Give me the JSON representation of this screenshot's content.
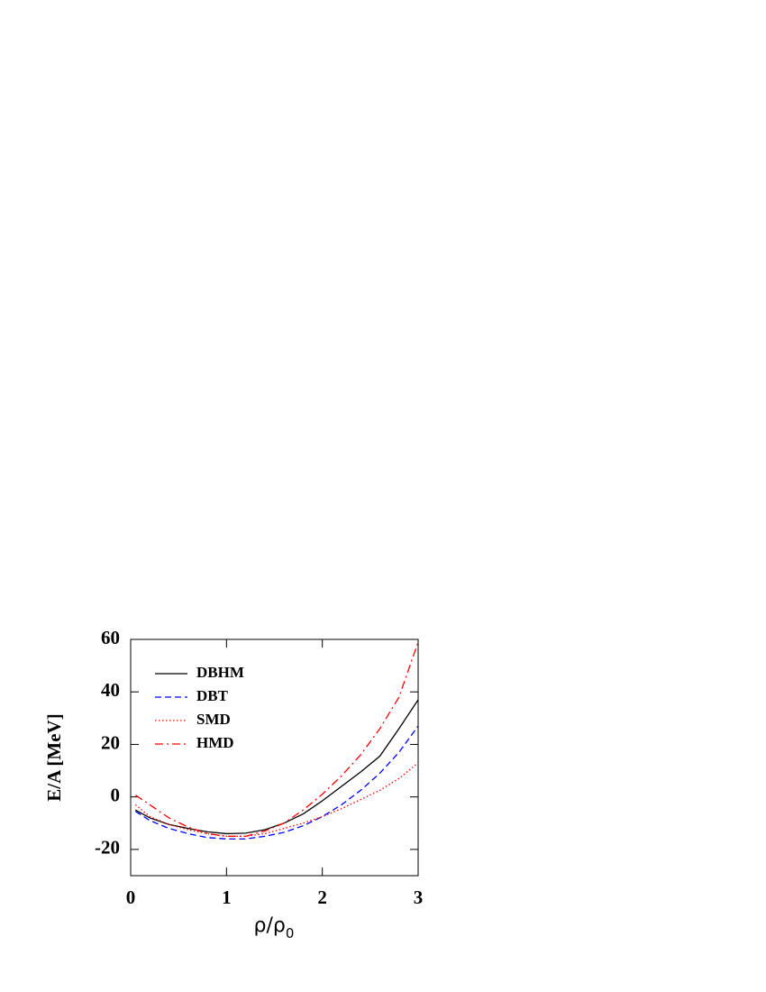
{
  "chart_data": {
    "type": "line",
    "ylabel": "E/A [MeV]",
    "xlabel": {
      "text": "ρ/ρ",
      "subscript": "0"
    },
    "x": [
      0.05,
      0.2,
      0.4,
      0.6,
      0.8,
      1.0,
      1.2,
      1.4,
      1.6,
      1.8,
      2.0,
      2.2,
      2.4,
      2.6,
      2.8,
      3.0
    ],
    "series": [
      {
        "name": "DBHM",
        "color": "#000000",
        "dash": "solid",
        "values": [
          -5,
          -8,
          -10.5,
          -12,
          -13.3,
          -14,
          -13.8,
          -12.5,
          -10,
          -6.5,
          -1.5,
          4,
          9.5,
          15.5,
          26,
          37
        ]
      },
      {
        "name": "DBT",
        "color": "#0000ff",
        "dash": "dashed",
        "values": [
          -5.5,
          -9,
          -12,
          -14,
          -15.5,
          -16,
          -16,
          -15,
          -13.5,
          -11,
          -7.5,
          -3,
          2.5,
          9,
          17,
          27
        ]
      },
      {
        "name": "SMD",
        "color": "#ff0000",
        "dash": "dotted",
        "values": [
          -3,
          -7.5,
          -10.5,
          -12.5,
          -14,
          -15,
          -15,
          -14,
          -12,
          -10,
          -7.5,
          -4.5,
          -1,
          2.5,
          7,
          13
        ]
      },
      {
        "name": "HMD",
        "color": "#ff0000",
        "dash": "dashdot",
        "values": [
          0.7,
          -3,
          -8,
          -11.5,
          -14,
          -15,
          -15,
          -13,
          -10,
          -5,
          1,
          8,
          16,
          26,
          38,
          59
        ]
      }
    ],
    "xlim": [
      0,
      3
    ],
    "xticks": [
      0,
      1,
      2,
      3
    ],
    "ylim": [
      -30,
      60
    ],
    "yticks": [
      -20,
      0,
      20,
      40,
      60
    ],
    "legend": "upper-left"
  }
}
